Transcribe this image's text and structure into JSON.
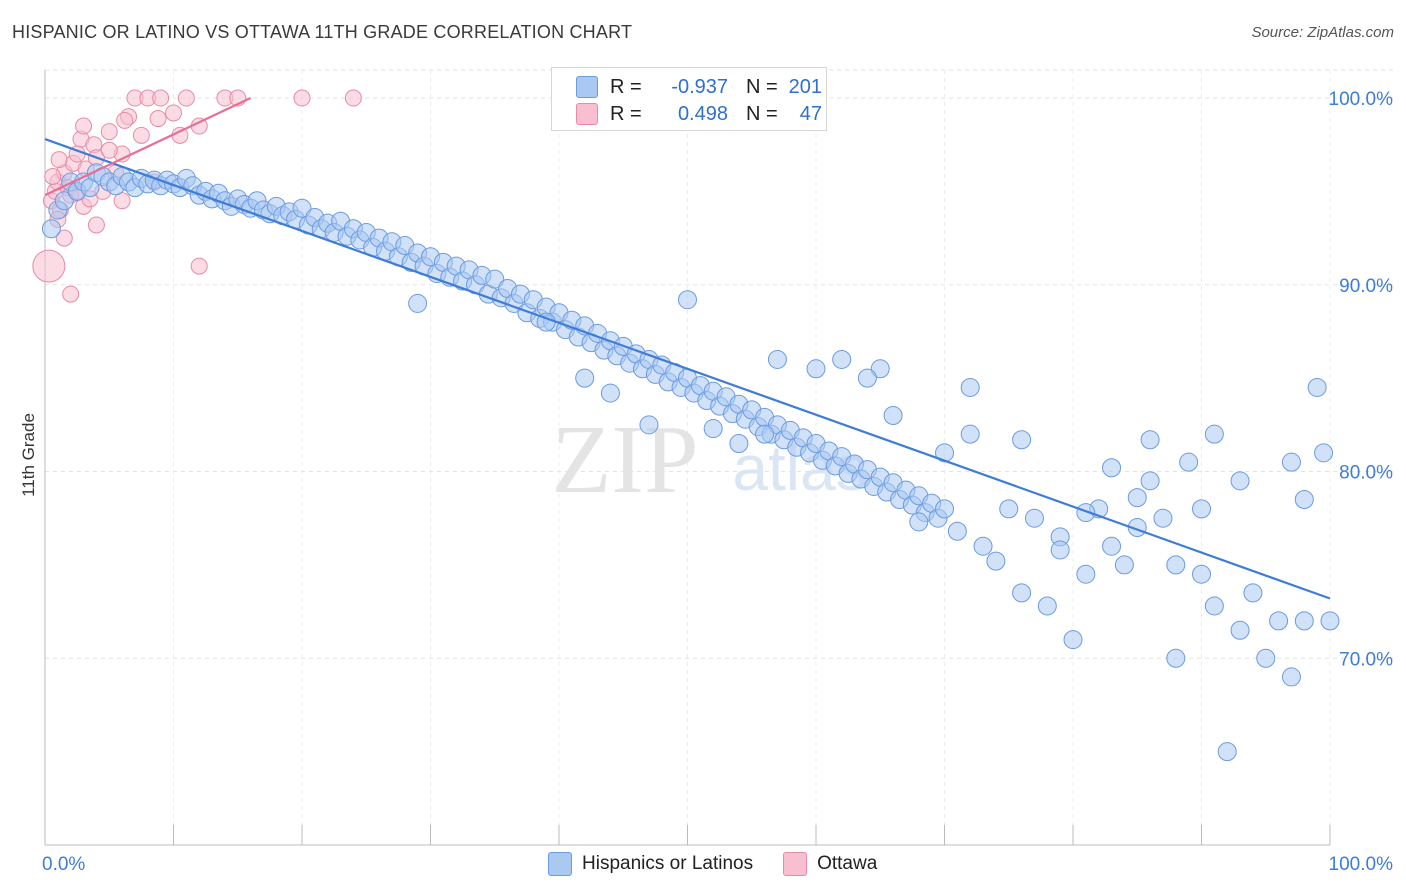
{
  "header": {
    "title": "HISPANIC OR LATINO VS OTTAWA 11TH GRADE CORRELATION CHART",
    "source": "Source: ZipAtlas.com"
  },
  "legend": {
    "rows": [
      {
        "r_label": "R =",
        "r_value": "-0.937",
        "n_label": "N =",
        "n_value": "201",
        "color": "#a9c8f2",
        "border": "#6b9be0"
      },
      {
        "r_label": "R =",
        "r_value": "0.498",
        "n_label": "N =",
        "n_value": "47",
        "color": "#f7bfd0",
        "border": "#e98aa8"
      }
    ]
  },
  "bottom_legend": [
    {
      "label": "Hispanics or Latinos",
      "color": "#a9c8f2",
      "border": "#6b9be0"
    },
    {
      "label": "Ottawa",
      "color": "#f7bfd0",
      "border": "#e98aa8"
    }
  ],
  "watermark": {
    "zip": "ZIP",
    "atlas": "atlas"
  },
  "chart_data": {
    "type": "scatter",
    "title": "HISPANIC OR LATINO VS OTTAWA 11TH GRADE CORRELATION CHART",
    "xlabel": "",
    "ylabel": "11th Grade",
    "xlim": [
      0,
      100
    ],
    "ylim": [
      60,
      101.5
    ],
    "x_tick_labels": [
      "0.0%",
      "100.0%"
    ],
    "y_tick_labels": [
      "100.0%",
      "90.0%",
      "80.0%",
      "70.0%"
    ],
    "y_ticks": [
      100,
      90,
      80,
      70
    ],
    "grid": true,
    "colors": {
      "blue": "#3d7dd8",
      "blue_fill": "#a9c8f2",
      "pink": "#e56f96",
      "pink_fill": "#f7bfd0"
    },
    "series": [
      {
        "name": "Hispanics or Latinos",
        "trend": {
          "x": [
            0,
            100
          ],
          "y": [
            97.8,
            73.2
          ]
        },
        "points": [
          [
            0.5,
            93.0
          ],
          [
            1,
            94.0
          ],
          [
            1.5,
            94.5
          ],
          [
            2,
            95.5
          ],
          [
            2.5,
            95.0
          ],
          [
            3,
            95.5
          ],
          [
            3.5,
            95.2
          ],
          [
            4,
            96.0
          ],
          [
            4.5,
            95.8
          ],
          [
            5,
            95.5
          ],
          [
            5.5,
            95.3
          ],
          [
            6,
            95.8
          ],
          [
            6.5,
            95.5
          ],
          [
            7,
            95.2
          ],
          [
            7.5,
            95.7
          ],
          [
            8,
            95.4
          ],
          [
            8.5,
            95.6
          ],
          [
            9,
            95.3
          ],
          [
            9.5,
            95.6
          ],
          [
            10,
            95.4
          ],
          [
            10.5,
            95.2
          ],
          [
            11,
            95.7
          ],
          [
            11.5,
            95.3
          ],
          [
            12,
            94.8
          ],
          [
            12.5,
            95.0
          ],
          [
            13,
            94.6
          ],
          [
            13.5,
            94.9
          ],
          [
            14,
            94.5
          ],
          [
            14.5,
            94.2
          ],
          [
            15,
            94.6
          ],
          [
            15.5,
            94.3
          ],
          [
            16,
            94.1
          ],
          [
            16.5,
            94.5
          ],
          [
            17,
            94.0
          ],
          [
            17.5,
            93.8
          ],
          [
            18,
            94.2
          ],
          [
            18.5,
            93.7
          ],
          [
            19,
            93.9
          ],
          [
            19.5,
            93.5
          ],
          [
            20,
            94.1
          ],
          [
            20.5,
            93.2
          ],
          [
            21,
            93.6
          ],
          [
            21.5,
            93.0
          ],
          [
            22,
            93.3
          ],
          [
            22.5,
            92.8
          ],
          [
            23,
            93.4
          ],
          [
            23.5,
            92.6
          ],
          [
            24,
            93.0
          ],
          [
            24.5,
            92.4
          ],
          [
            25,
            92.8
          ],
          [
            25.5,
            92.0
          ],
          [
            26,
            92.5
          ],
          [
            26.5,
            91.8
          ],
          [
            27,
            92.3
          ],
          [
            27.5,
            91.5
          ],
          [
            28,
            92.1
          ],
          [
            28.5,
            91.2
          ],
          [
            29,
            91.7
          ],
          [
            29.5,
            91.0
          ],
          [
            30,
            91.5
          ],
          [
            30.5,
            90.6
          ],
          [
            31,
            91.2
          ],
          [
            31.5,
            90.4
          ],
          [
            32,
            91.0
          ],
          [
            32.5,
            90.2
          ],
          [
            33,
            90.8
          ],
          [
            33.5,
            90.0
          ],
          [
            34,
            90.5
          ],
          [
            34.5,
            89.5
          ],
          [
            35,
            90.3
          ],
          [
            35.5,
            89.3
          ],
          [
            36,
            89.8
          ],
          [
            36.5,
            89.0
          ],
          [
            37,
            89.5
          ],
          [
            37.5,
            88.5
          ],
          [
            38,
            89.2
          ],
          [
            38.5,
            88.2
          ],
          [
            39,
            88.8
          ],
          [
            39.5,
            88.0
          ],
          [
            40,
            88.5
          ],
          [
            40.5,
            87.6
          ],
          [
            41,
            88.1
          ],
          [
            41.5,
            87.2
          ],
          [
            42,
            87.8
          ],
          [
            42.5,
            86.9
          ],
          [
            43,
            87.4
          ],
          [
            43.5,
            86.5
          ],
          [
            44,
            87.0
          ],
          [
            44.5,
            86.2
          ],
          [
            45,
            86.7
          ],
          [
            45.5,
            85.8
          ],
          [
            46,
            86.3
          ],
          [
            46.5,
            85.5
          ],
          [
            47,
            86.0
          ],
          [
            47.5,
            85.2
          ],
          [
            48,
            85.7
          ],
          [
            48.5,
            84.8
          ],
          [
            49,
            85.3
          ],
          [
            49.5,
            84.5
          ],
          [
            50,
            85.0
          ],
          [
            50.5,
            84.2
          ],
          [
            51,
            84.6
          ],
          [
            51.5,
            83.8
          ],
          [
            52,
            84.3
          ],
          [
            52.5,
            83.5
          ],
          [
            53,
            84.0
          ],
          [
            53.5,
            83.1
          ],
          [
            54,
            83.6
          ],
          [
            54.5,
            82.8
          ],
          [
            55,
            83.3
          ],
          [
            55.5,
            82.4
          ],
          [
            56,
            82.9
          ],
          [
            56.5,
            82.0
          ],
          [
            57,
            82.5
          ],
          [
            57.5,
            81.7
          ],
          [
            58,
            82.2
          ],
          [
            58.5,
            81.3
          ],
          [
            59,
            81.8
          ],
          [
            59.5,
            81.0
          ],
          [
            60,
            81.5
          ],
          [
            60.5,
            80.6
          ],
          [
            61,
            81.1
          ],
          [
            61.5,
            80.3
          ],
          [
            62,
            80.8
          ],
          [
            62.5,
            79.9
          ],
          [
            63,
            80.4
          ],
          [
            63.5,
            79.6
          ],
          [
            64,
            80.1
          ],
          [
            64.5,
            79.2
          ],
          [
            65,
            79.7
          ],
          [
            65.5,
            78.9
          ],
          [
            66,
            79.4
          ],
          [
            66.5,
            78.5
          ],
          [
            67,
            79.0
          ],
          [
            67.5,
            78.2
          ],
          [
            68,
            78.7
          ],
          [
            68.5,
            77.8
          ],
          [
            69,
            78.3
          ],
          [
            69.5,
            77.5
          ],
          [
            70,
            78.0
          ],
          [
            29,
            89.0
          ],
          [
            39,
            88.0
          ],
          [
            50,
            89.2
          ],
          [
            57,
            86.0
          ],
          [
            62,
            86.0
          ],
          [
            65,
            85.5
          ],
          [
            72,
            84.5
          ],
          [
            76,
            81.7
          ],
          [
            82,
            78.0
          ],
          [
            85,
            77.0
          ],
          [
            88,
            75.0
          ],
          [
            90,
            74.5
          ],
          [
            95,
            70.0
          ],
          [
            93,
            71.5
          ],
          [
            91,
            72.8
          ],
          [
            96,
            72.0
          ],
          [
            98,
            72.0
          ],
          [
            99,
            84.5
          ],
          [
            99.5,
            81.0
          ],
          [
            97,
            80.5
          ],
          [
            92,
            65.0
          ],
          [
            88,
            70.0
          ],
          [
            80,
            71.0
          ],
          [
            78,
            72.8
          ],
          [
            84,
            75.0
          ],
          [
            86,
            79.5
          ],
          [
            90,
            78.0
          ],
          [
            94,
            73.5
          ],
          [
            97,
            69.0
          ],
          [
            100,
            72.0
          ],
          [
            73,
            76.0
          ],
          [
            75,
            78.0
          ],
          [
            77,
            77.5
          ],
          [
            79,
            76.5
          ],
          [
            81,
            74.5
          ],
          [
            83,
            76.0
          ],
          [
            87,
            77.5
          ],
          [
            89,
            80.5
          ],
          [
            91,
            82.0
          ],
          [
            60,
            85.5
          ],
          [
            70,
            81.0
          ],
          [
            72,
            82.0
          ],
          [
            66,
            83.0
          ],
          [
            64,
            85.0
          ],
          [
            56,
            82.0
          ],
          [
            54,
            81.5
          ],
          [
            52,
            82.3
          ],
          [
            47,
            82.5
          ],
          [
            44,
            84.2
          ],
          [
            42,
            85.0
          ],
          [
            68,
            77.3
          ],
          [
            71,
            76.8
          ],
          [
            74,
            75.2
          ],
          [
            76,
            73.5
          ],
          [
            79,
            75.8
          ],
          [
            81,
            77.8
          ],
          [
            83,
            80.2
          ],
          [
            85,
            78.6
          ],
          [
            86,
            81.7
          ],
          [
            93,
            79.5
          ],
          [
            98,
            78.5
          ]
        ]
      },
      {
        "name": "Ottawa",
        "trend": {
          "x": [
            0,
            16
          ],
          "y": [
            94.8,
            100
          ]
        },
        "points": [
          [
            0.5,
            94.5
          ],
          [
            0.8,
            95.0
          ],
          [
            1,
            95.5
          ],
          [
            1.2,
            94.0
          ],
          [
            1.5,
            96.0
          ],
          [
            1.8,
            95.2
          ],
          [
            2,
            94.8
          ],
          [
            2.2,
            96.5
          ],
          [
            2.5,
            95.0
          ],
          [
            2.8,
            97.8
          ],
          [
            3,
            94.2
          ],
          [
            3.2,
            96.2
          ],
          [
            3.5,
            94.6
          ],
          [
            3.8,
            97.5
          ],
          [
            4,
            93.2
          ],
          [
            4.5,
            95.0
          ],
          [
            5,
            98.2
          ],
          [
            5.5,
            96.0
          ],
          [
            6,
            97.0
          ],
          [
            6.5,
            99.0
          ],
          [
            7,
            100.0
          ],
          [
            7.5,
            98.0
          ],
          [
            8,
            100.0
          ],
          [
            8.5,
            95.5
          ],
          [
            9,
            100.0
          ],
          [
            10,
            99.2
          ],
          [
            10.5,
            98.0
          ],
          [
            11,
            100.0
          ],
          [
            12,
            98.5
          ],
          [
            14,
            100.0
          ],
          [
            15,
            100.0
          ],
          [
            20,
            100.0
          ],
          [
            24,
            100.0
          ],
          [
            0.3,
            91.0
          ],
          [
            1.5,
            92.5
          ],
          [
            2,
            89.5
          ],
          [
            12,
            91.0
          ],
          [
            6,
            94.5
          ],
          [
            4,
            96.8
          ],
          [
            3,
            98.5
          ],
          [
            5,
            97.2
          ],
          [
            1,
            93.5
          ],
          [
            2.5,
            97.0
          ],
          [
            6.2,
            98.8
          ],
          [
            8.8,
            98.9
          ],
          [
            0.6,
            95.8
          ],
          [
            1.1,
            96.7
          ]
        ]
      }
    ]
  }
}
